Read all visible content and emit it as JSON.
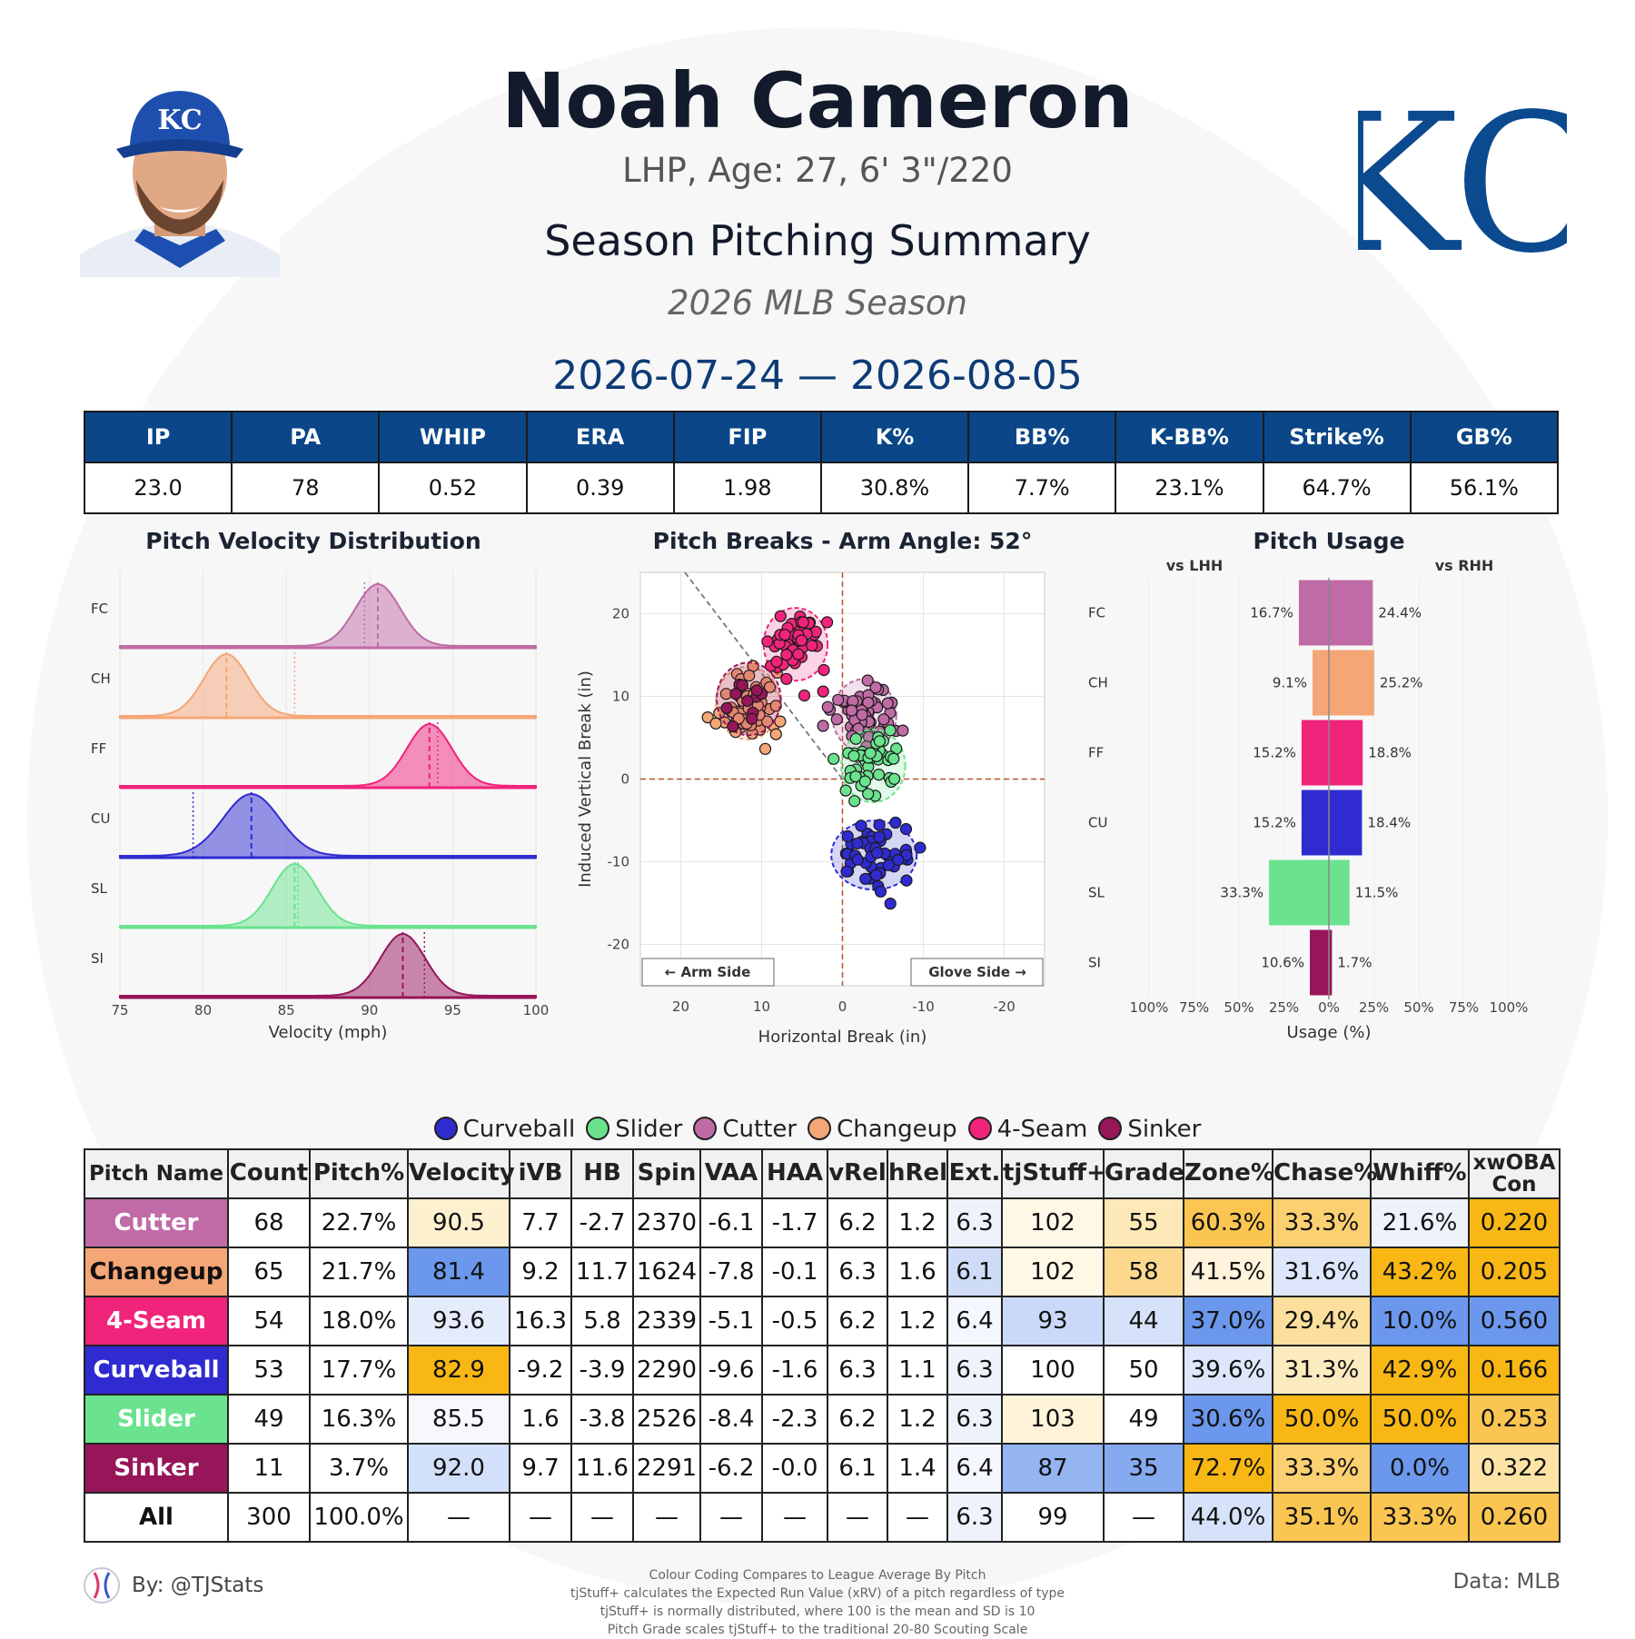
{
  "header": {
    "name": "Noah Cameron",
    "bio": "LHP, Age: 27, 6' 3\"/220",
    "subtitle": "Season Pitching Summary",
    "season": "2026 MLB Season",
    "date_range": "2026-07-24 — 2026-08-05",
    "logo_text": "KC"
  },
  "stats": {
    "headers": [
      "IP",
      "PA",
      "WHIP",
      "ERA",
      "FIP",
      "K%",
      "BB%",
      "K-BB%",
      "Strike%",
      "GB%"
    ],
    "values": [
      "23.0",
      "78",
      "0.52",
      "0.39",
      "1.98",
      "30.8%",
      "7.7%",
      "23.1%",
      "64.7%",
      "56.1%"
    ]
  },
  "colors": {
    "header_blue": "#0a4688",
    "Cutter": "#c06ba6",
    "Changeup": "#f5a676",
    "4-Seam": "#f0247a",
    "Curveball": "#2f2bd0",
    "Slider": "#6be38e",
    "Sinker": "#97165a",
    "grade_high": "#f8b714",
    "grade_low": "#5e8ee8"
  },
  "chart_data": [
    {
      "type": "area",
      "title": "Pitch Velocity Distribution",
      "xlabel": "Velocity (mph)",
      "xlim": [
        75,
        100
      ],
      "xticks": [
        "75",
        "80",
        "85",
        "90",
        "95",
        "100"
      ],
      "series": [
        {
          "name": "FC",
          "mean": 90.5,
          "league_avg": 89.7
        },
        {
          "name": "CH",
          "mean": 81.4,
          "league_avg": 85.5
        },
        {
          "name": "FF",
          "mean": 93.6,
          "league_avg": 94.1
        },
        {
          "name": "CU",
          "mean": 82.9,
          "league_avg": 79.4
        },
        {
          "name": "SL",
          "mean": 85.5,
          "league_avg": 85.7
        },
        {
          "name": "SI",
          "mean": 92.0,
          "league_avg": 93.3
        }
      ]
    },
    {
      "type": "scatter",
      "title": "Pitch Breaks - Arm Angle: 52°",
      "xlabel": "Horizontal Break (in)",
      "ylabel": "Induced Vertical Break (in)",
      "xlim": [
        25,
        -25
      ],
      "ylim": [
        -25,
        25
      ],
      "xticks": [
        "20",
        "10",
        "0",
        "-10",
        "-20"
      ],
      "yticks": [
        "20",
        "10",
        "0",
        "-10",
        "-20"
      ],
      "annotations": [
        "← Arm Side",
        "Glove Side →"
      ],
      "series": [
        {
          "name": "Cutter",
          "center": [
            -2.7,
            7.7
          ],
          "n": 68
        },
        {
          "name": "Changeup",
          "center": [
            11.7,
            9.2
          ],
          "n": 65
        },
        {
          "name": "4-Seam",
          "center": [
            5.8,
            16.3
          ],
          "n": 54
        },
        {
          "name": "Curveball",
          "center": [
            -3.9,
            -9.2
          ],
          "n": 53
        },
        {
          "name": "Slider",
          "center": [
            -3.8,
            1.6
          ],
          "n": 49
        },
        {
          "name": "Sinker",
          "center": [
            11.6,
            9.7
          ],
          "n": 11
        }
      ]
    },
    {
      "type": "bar",
      "title": "Pitch Usage",
      "xlabel": "Usage (%)",
      "left_label": "vs LHH",
      "right_label": "vs RHH",
      "xticks": [
        "100%",
        "75%",
        "50%",
        "25%",
        "0%",
        "25%",
        "50%",
        "75%",
        "100%"
      ],
      "categories": [
        "FC",
        "CH",
        "FF",
        "CU",
        "SL",
        "SI"
      ],
      "series": [
        {
          "name": "vs LHH",
          "values": [
            16.7,
            9.1,
            15.2,
            15.2,
            33.3,
            10.6
          ],
          "labels": [
            "16.7%",
            "9.1%",
            "15.2%",
            "15.2%",
            "33.3%",
            "10.6%"
          ]
        },
        {
          "name": "vs RHH",
          "values": [
            24.4,
            25.2,
            18.8,
            18.4,
            11.5,
            1.7
          ],
          "labels": [
            "24.4%",
            "25.2%",
            "18.8%",
            "18.4%",
            "11.5%",
            "1.7%"
          ]
        }
      ]
    }
  ],
  "legend": [
    "Curveball",
    "Slider",
    "Cutter",
    "Changeup",
    "4-Seam",
    "Sinker"
  ],
  "table": {
    "headers": [
      "Pitch Name",
      "Count",
      "Pitch%",
      "Velocity",
      "iVB",
      "HB",
      "Spin",
      "VAA",
      "HAA",
      "vRel",
      "hRel",
      "Ext.",
      "tjStuff+",
      "Grade",
      "Zone%",
      "Chase%",
      "Whiff%",
      "xwOBA Con"
    ],
    "rows": [
      {
        "cells": [
          "Cutter",
          "68",
          "22.7%",
          "90.5",
          "7.7",
          "-2.7",
          "2370",
          "-6.1",
          "-1.7",
          "6.2",
          "1.2",
          "6.3",
          "102",
          "55",
          "60.3%",
          "33.3%",
          "21.6%",
          "0.220"
        ],
        "bg": [
          "#c06ba6",
          "#fff",
          "#fff",
          "#fdf0cf",
          "#fff",
          "#fff",
          "#fff",
          "#fff",
          "#fff",
          "#fff",
          "#fff",
          "#eef2fb",
          "#fff8e6",
          "#fde9b7",
          "#fbc552",
          "#fbd071",
          "#eef2fb",
          "#f8b714"
        ]
      },
      {
        "cells": [
          "Changeup",
          "65",
          "21.7%",
          "81.4",
          "9.2",
          "11.7",
          "1624",
          "-7.8",
          "-0.1",
          "6.3",
          "1.6",
          "6.1",
          "102",
          "58",
          "41.5%",
          "31.6%",
          "43.2%",
          "0.205"
        ],
        "bg": [
          "#f5a676",
          "#fff",
          "#fff",
          "#6b98ec",
          "#fff",
          "#fff",
          "#fff",
          "#fff",
          "#fff",
          "#fff",
          "#fff",
          "#cfdcf8",
          "#fff8e6",
          "#fcd88e",
          "#fff3dc",
          "#dde6fa",
          "#f8b714",
          "#f8b714"
        ]
      },
      {
        "cells": [
          "4-Seam",
          "54",
          "18.0%",
          "93.6",
          "16.3",
          "5.8",
          "2339",
          "-5.1",
          "-0.5",
          "6.2",
          "1.2",
          "6.4",
          "93",
          "44",
          "37.0%",
          "29.4%",
          "10.0%",
          "0.560"
        ],
        "bg": [
          "#f0247a",
          "#fff",
          "#fff",
          "#e4ebfb",
          "#fff",
          "#fff",
          "#fff",
          "#fff",
          "#fff",
          "#fff",
          "#fff",
          "#f4f7fd",
          "#cad9f8",
          "#d6e2f9",
          "#6b98ec",
          "#fddf9d",
          "#6b98ec",
          "#6b98ec"
        ]
      },
      {
        "cells": [
          "Curveball",
          "53",
          "17.7%",
          "82.9",
          "-9.2",
          "-3.9",
          "2290",
          "-9.6",
          "-1.6",
          "6.3",
          "1.1",
          "6.3",
          "100",
          "50",
          "39.6%",
          "31.3%",
          "42.9%",
          "0.166"
        ],
        "bg": [
          "#2f2bd0",
          "#fff",
          "#fff",
          "#f8b714",
          "#fff",
          "#fff",
          "#fff",
          "#fff",
          "#fff",
          "#fff",
          "#fff",
          "#eef2fb",
          "#fff",
          "#fff",
          "#dde6fa",
          "#fdebc0",
          "#f8b714",
          "#f8b714"
        ]
      },
      {
        "cells": [
          "Slider",
          "49",
          "16.3%",
          "85.5",
          "1.6",
          "-3.8",
          "2526",
          "-8.4",
          "-2.3",
          "6.2",
          "1.2",
          "6.3",
          "103",
          "49",
          "30.6%",
          "50.0%",
          "50.0%",
          "0.253"
        ],
        "bg": [
          "#6be38e",
          "#fff",
          "#fff",
          "#f6f8fd",
          "#fff",
          "#fff",
          "#fff",
          "#fff",
          "#fff",
          "#fff",
          "#fff",
          "#eef2fb",
          "#fff4d9",
          "#fff",
          "#6b98ec",
          "#f8b714",
          "#f8b714",
          "#fbc552"
        ]
      },
      {
        "cells": [
          "Sinker",
          "11",
          "3.7%",
          "92.0",
          "9.7",
          "11.6",
          "2291",
          "-6.2",
          "-0.0",
          "6.1",
          "1.4",
          "6.4",
          "87",
          "35",
          "72.7%",
          "33.3%",
          "0.0%",
          "0.322"
        ],
        "bg": [
          "#97165a",
          "#fff",
          "#fff",
          "#d3e0fa",
          "#fff",
          "#fff",
          "#fff",
          "#fff",
          "#fff",
          "#fff",
          "#fff",
          "#f4f7fd",
          "#94b4f2",
          "#86aaf0",
          "#f8b714",
          "#fbd071",
          "#6b98ec",
          "#fde4a6"
        ]
      },
      {
        "cells": [
          "All",
          "300",
          "100.0%",
          "—",
          "—",
          "—",
          "—",
          "—",
          "—",
          "—",
          "—",
          "6.3",
          "99",
          "—",
          "44.0%",
          "35.1%",
          "33.3%",
          "0.260"
        ],
        "bg": [
          "#fff",
          "#fff",
          "#fff",
          "#fff",
          "#fff",
          "#fff",
          "#fff",
          "#fff",
          "#fff",
          "#fff",
          "#fff",
          "#eef2fb",
          "#fff",
          "#fff",
          "#d6e2f9",
          "#fbc552",
          "#fbc552",
          "#fbc552"
        ]
      }
    ]
  },
  "footer": {
    "byline": "By: @TJStats",
    "data_source": "Data: MLB",
    "notes": [
      "Colour Coding Compares to League Average By Pitch",
      "tjStuff+ calculates the Expected Run Value (xRV) of a pitch regardless of type",
      "tjStuff+ is normally distributed, where 100 is the mean and SD is 10",
      "Pitch Grade scales tjStuff+ to the traditional 20-80 Scouting Scale"
    ]
  }
}
